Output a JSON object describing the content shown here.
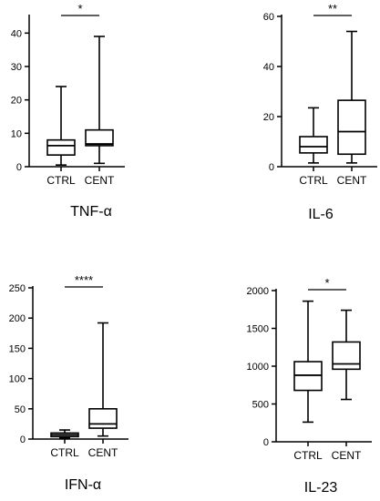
{
  "chart_data": [
    {
      "type": "box",
      "title": "TNF-α",
      "categories": [
        "CTRL",
        "CENT"
      ],
      "yticks": [
        0,
        10,
        20,
        30,
        40
      ],
      "ylim": [
        0,
        45
      ],
      "boxes": [
        {
          "category": "CTRL",
          "min": 0.5,
          "q1": 3.5,
          "median": 6.3,
          "q3": 8,
          "max": 24
        },
        {
          "category": "CENT",
          "min": 1,
          "q1": 6.3,
          "median": 6.8,
          "q3": 11,
          "max": 39
        }
      ],
      "significance": "*"
    },
    {
      "type": "box",
      "title": "IL-6",
      "categories": [
        "CTRL",
        "CENT"
      ],
      "yticks": [
        0,
        20,
        40,
        60
      ],
      "ylim": [
        0,
        60
      ],
      "boxes": [
        {
          "category": "CTRL",
          "min": 1.5,
          "q1": 5.5,
          "median": 8,
          "q3": 12,
          "max": 23.5
        },
        {
          "category": "CENT",
          "min": 1.5,
          "q1": 5,
          "median": 14,
          "q3": 26.5,
          "max": 54
        }
      ],
      "significance": "**"
    },
    {
      "type": "box",
      "title": "IFN-α",
      "categories": [
        "CTRL",
        "CENT"
      ],
      "yticks": [
        0,
        50,
        100,
        150,
        200,
        250
      ],
      "ylim": [
        0,
        250
      ],
      "boxes": [
        {
          "category": "CTRL",
          "min": 2,
          "q1": 4,
          "median": 7,
          "q3": 10,
          "max": 15
        },
        {
          "category": "CENT",
          "min": 5,
          "q1": 18,
          "median": 25,
          "q3": 50,
          "max": 192
        }
      ],
      "significance": "****"
    },
    {
      "type": "box",
      "title": "IL-23",
      "categories": [
        "CTRL",
        "CENT"
      ],
      "yticks": [
        0,
        500,
        1000,
        1500,
        2000
      ],
      "ylim": [
        0,
        2000
      ],
      "boxes": [
        {
          "category": "CTRL",
          "min": 260,
          "q1": 680,
          "median": 880,
          "q3": 1060,
          "max": 1860
        },
        {
          "category": "CENT",
          "min": 560,
          "q1": 960,
          "median": 1030,
          "q3": 1320,
          "max": 1740
        }
      ],
      "significance": "*"
    }
  ]
}
